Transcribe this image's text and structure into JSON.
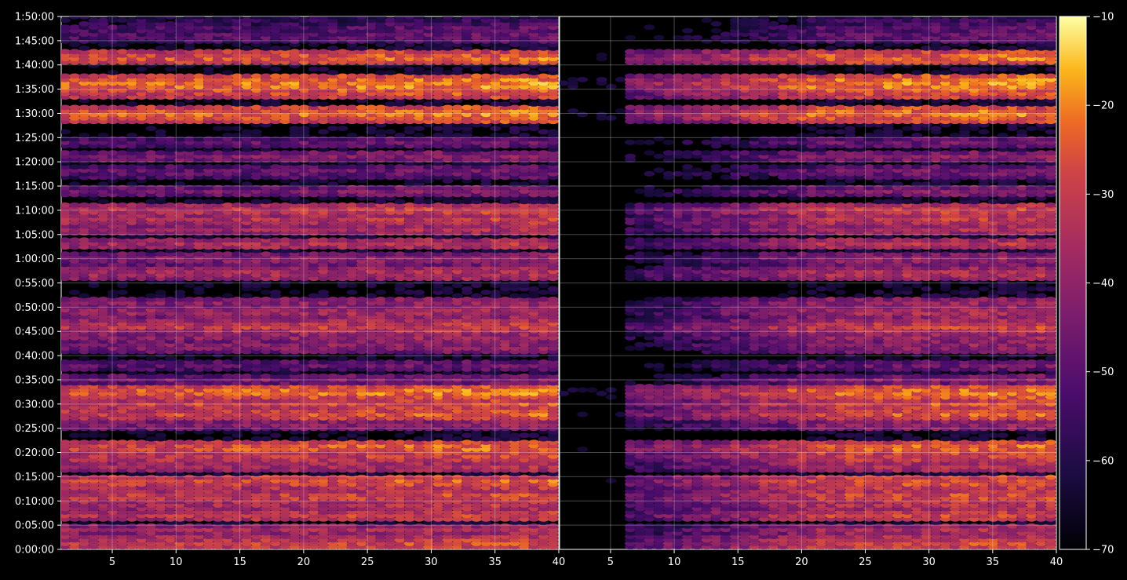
{
  "chart_data": {
    "type": "heatmap",
    "title": "",
    "xlabel": "",
    "ylabel": "",
    "background": "#000000",
    "colormap": "inferno",
    "grid": true,
    "panels": [
      {
        "name": "",
        "xlim": [
          1,
          40
        ],
        "xticks": [
          5,
          10,
          15,
          20,
          25,
          30,
          35,
          40
        ]
      },
      {
        "name": "",
        "xlim": [
          1,
          40
        ],
        "xticks": [
          5,
          10,
          15,
          20,
          25,
          30,
          35,
          40
        ]
      }
    ],
    "y_axis": {
      "unit": "h:mm:ss",
      "range_minutes": [
        0,
        110
      ],
      "ticks": [
        "0:00:00",
        "0:05:00",
        "0:10:00",
        "0:15:00",
        "0:20:00",
        "0:25:00",
        "0:30:00",
        "0:35:00",
        "0:40:00",
        "0:45:00",
        "0:50:00",
        "0:55:00",
        "1:00:00",
        "1:05:00",
        "1:10:00",
        "1:15:00",
        "1:20:00",
        "1:25:00",
        "1:30:00",
        "1:35:00",
        "1:40:00",
        "1:45:00",
        "1:50:00"
      ]
    },
    "colorbar": {
      "range": [
        -70,
        -10
      ],
      "ticks": [
        "−70",
        "−60",
        "−50",
        "−40",
        "−30",
        "−20",
        "−10"
      ]
    },
    "row_profile_minutes": [
      {
        "minute": 1,
        "level": -28
      },
      {
        "minute": 2,
        "level": -32
      },
      {
        "minute": 4,
        "level": -36
      },
      {
        "minute": 7,
        "level": -30
      },
      {
        "minute": 9,
        "level": -34
      },
      {
        "minute": 11,
        "level": -28
      },
      {
        "minute": 14,
        "level": -26
      },
      {
        "minute": 17,
        "level": -36
      },
      {
        "minute": 19,
        "level": -30
      },
      {
        "minute": 21,
        "level": -24
      },
      {
        "minute": 26,
        "level": -40
      },
      {
        "minute": 28,
        "level": -26
      },
      {
        "minute": 30,
        "level": -28
      },
      {
        "minute": 32.5,
        "level": -22
      },
      {
        "minute": 35,
        "level": -44
      },
      {
        "minute": 38,
        "level": -48
      },
      {
        "minute": 42,
        "level": -40
      },
      {
        "minute": 44,
        "level": -38
      },
      {
        "minute": 46,
        "level": -30
      },
      {
        "minute": 49,
        "level": -36
      },
      {
        "minute": 51,
        "level": -40
      },
      {
        "minute": 57,
        "level": -34
      },
      {
        "minute": 60,
        "level": -40
      },
      {
        "minute": 63,
        "level": -34
      },
      {
        "minute": 66,
        "level": -36
      },
      {
        "minute": 68,
        "level": -32
      },
      {
        "minute": 70,
        "level": -30
      },
      {
        "minute": 74,
        "level": -44
      },
      {
        "minute": 78,
        "level": -46
      },
      {
        "minute": 81,
        "level": -42
      },
      {
        "minute": 84,
        "level": -48
      },
      {
        "minute": 89,
        "level": -26
      },
      {
        "minute": 90,
        "level": -22
      },
      {
        "minute": 94,
        "level": -28
      },
      {
        "minute": 96,
        "level": -20
      },
      {
        "minute": 97,
        "level": -24
      },
      {
        "minute": 101.5,
        "level": -24
      },
      {
        "minute": 106,
        "level": -48
      },
      {
        "minute": 107.5,
        "level": -50
      },
      {
        "minute": 109,
        "level": -56
      }
    ],
    "right_panel_fade": {
      "dark_until_x": 6,
      "full_from_x": 22,
      "level_drop": 18
    }
  }
}
